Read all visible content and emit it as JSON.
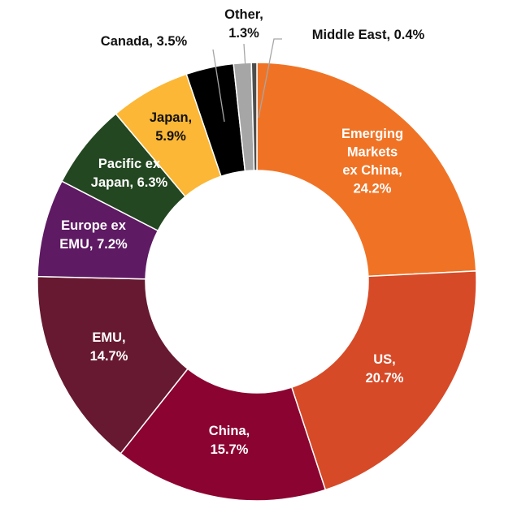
{
  "chart_data": {
    "type": "pie",
    "donut": true,
    "title": "",
    "legend": "none",
    "slices": [
      {
        "name": "Emerging Markets ex China",
        "value": 24.2,
        "color": "#F07325",
        "label_lines": [
          "Emerging",
          "Markets",
          "ex China,",
          "24.2%"
        ],
        "label_color": "#ffffff"
      },
      {
        "name": "US",
        "value": 20.7,
        "color": "#D64A28",
        "label_lines": [
          "US,",
          "20.7%"
        ],
        "label_color": "#ffffff"
      },
      {
        "name": "China",
        "value": 15.7,
        "color": "#8B0330",
        "label_lines": [
          "China,",
          "15.7%"
        ],
        "label_color": "#ffffff"
      },
      {
        "name": "EMU",
        "value": 14.7,
        "color": "#661930",
        "label_lines": [
          "EMU,",
          "14.7%"
        ],
        "label_color": "#ffffff"
      },
      {
        "name": "Europe ex EMU",
        "value": 7.2,
        "color": "#5E1A63",
        "label_lines": [
          "Europe ex",
          "EMU, 7.2%"
        ],
        "label_color": "#ffffff"
      },
      {
        "name": "Pacific ex Japan",
        "value": 6.3,
        "color": "#234720",
        "label_lines": [
          "Pacific ex",
          "Japan, 6.3%"
        ],
        "label_color": "#ffffff"
      },
      {
        "name": "Japan",
        "value": 5.9,
        "color": "#FBB735",
        "label_lines": [
          "Japan,",
          "5.9%"
        ],
        "label_color": "#111111"
      },
      {
        "name": "Canada",
        "value": 3.5,
        "color": "#000000",
        "label_lines": [
          "Canada, 3.5%"
        ],
        "label_color": "#111111"
      },
      {
        "name": "Other",
        "value": 1.3,
        "color": "#A6A6A6",
        "label_lines": [
          "Other,",
          "1.3%"
        ],
        "label_color": "#111111"
      },
      {
        "name": "Middle East",
        "value": 0.4,
        "color": "#4D4D4D",
        "label_lines": [
          "Middle East, 0.4%"
        ],
        "label_color": "#111111"
      }
    ]
  }
}
